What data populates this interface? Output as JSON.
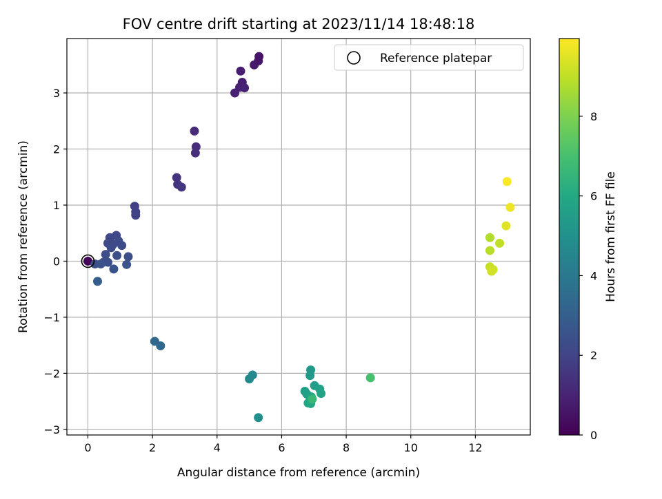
{
  "chart_data": {
    "type": "scatter",
    "title": "FOV centre drift starting at 2023/11/14 18:48:18",
    "xlabel": "Angular distance from reference (arcmin)",
    "ylabel": "Rotation from reference (arcmin)",
    "xlim": [
      -0.65,
      13.7
    ],
    "ylim": [
      -3.1,
      3.97
    ],
    "xticks": [
      0,
      2,
      4,
      6,
      8,
      10,
      12
    ],
    "yticks": [
      3,
      2,
      1,
      0,
      -1,
      -2,
      -3
    ],
    "xtick_labels": [
      "0",
      "2",
      "4",
      "6",
      "8",
      "10",
      "12"
    ],
    "ytick_labels": [
      "3",
      "2",
      "1",
      "0",
      "−1",
      "−2",
      "−3"
    ],
    "grid": true,
    "legend": {
      "position": "top-right",
      "entries": [
        {
          "label": "Reference platepar",
          "marker": "open-circle"
        }
      ]
    },
    "reference_point": {
      "x": 0,
      "y": 0
    },
    "colorbar": {
      "label": "Hours from first FF file",
      "colormap": "viridis",
      "range": [
        0,
        9.95
      ],
      "ticks": [
        0,
        2,
        4,
        6,
        8
      ],
      "tick_labels": [
        "0",
        "2",
        "4",
        "6",
        "8"
      ]
    },
    "points": [
      {
        "x": 0.0,
        "y": 0.0,
        "t": 0.05
      },
      {
        "x": 4.55,
        "y": 3.0,
        "t": 0.9
      },
      {
        "x": 4.7,
        "y": 3.1,
        "t": 0.9
      },
      {
        "x": 4.78,
        "y": 3.19,
        "t": 0.85
      },
      {
        "x": 4.85,
        "y": 3.09,
        "t": 0.95
      },
      {
        "x": 4.73,
        "y": 3.39,
        "t": 0.85
      },
      {
        "x": 5.15,
        "y": 3.5,
        "t": 0.7
      },
      {
        "x": 5.28,
        "y": 3.57,
        "t": 0.6
      },
      {
        "x": 5.3,
        "y": 3.65,
        "t": 0.55
      },
      {
        "x": 3.3,
        "y": 2.32,
        "t": 1.2
      },
      {
        "x": 3.35,
        "y": 2.04,
        "t": 1.25
      },
      {
        "x": 3.33,
        "y": 1.93,
        "t": 1.3
      },
      {
        "x": 2.75,
        "y": 1.49,
        "t": 1.45
      },
      {
        "x": 2.78,
        "y": 1.37,
        "t": 1.5
      },
      {
        "x": 2.9,
        "y": 1.32,
        "t": 1.55
      },
      {
        "x": 1.45,
        "y": 0.98,
        "t": 1.85
      },
      {
        "x": 1.48,
        "y": 0.88,
        "t": 1.9
      },
      {
        "x": 1.48,
        "y": 0.82,
        "t": 1.95
      },
      {
        "x": 0.68,
        "y": 0.42,
        "t": 2.1
      },
      {
        "x": 0.88,
        "y": 0.46,
        "t": 2.15
      },
      {
        "x": 0.62,
        "y": 0.32,
        "t": 2.2
      },
      {
        "x": 0.78,
        "y": 0.3,
        "t": 2.2
      },
      {
        "x": 0.95,
        "y": 0.36,
        "t": 2.25
      },
      {
        "x": 1.05,
        "y": 0.28,
        "t": 2.3
      },
      {
        "x": 0.72,
        "y": 0.24,
        "t": 2.3
      },
      {
        "x": 0.55,
        "y": 0.12,
        "t": 2.35
      },
      {
        "x": 0.9,
        "y": 0.1,
        "t": 2.4
      },
      {
        "x": 1.25,
        "y": 0.08,
        "t": 2.4
      },
      {
        "x": 0.48,
        "y": -0.02,
        "t": 2.45
      },
      {
        "x": 0.62,
        "y": -0.02,
        "t": 2.45
      },
      {
        "x": 0.22,
        "y": -0.05,
        "t": 2.4
      },
      {
        "x": 0.4,
        "y": -0.05,
        "t": 2.5
      },
      {
        "x": 1.2,
        "y": -0.06,
        "t": 2.55
      },
      {
        "x": 0.8,
        "y": -0.14,
        "t": 2.55
      },
      {
        "x": 0.3,
        "y": -0.36,
        "t": 2.9
      },
      {
        "x": 2.07,
        "y": -1.43,
        "t": 3.3
      },
      {
        "x": 2.25,
        "y": -1.51,
        "t": 3.35
      },
      {
        "x": 5.1,
        "y": -2.03,
        "t": 4.6
      },
      {
        "x": 5.0,
        "y": -2.1,
        "t": 4.65
      },
      {
        "x": 5.28,
        "y": -2.79,
        "t": 4.9
      },
      {
        "x": 6.9,
        "y": -1.94,
        "t": 5.3
      },
      {
        "x": 6.88,
        "y": -2.04,
        "t": 5.4
      },
      {
        "x": 7.02,
        "y": -2.22,
        "t": 5.5
      },
      {
        "x": 6.72,
        "y": -2.32,
        "t": 5.6
      },
      {
        "x": 6.78,
        "y": -2.37,
        "t": 5.65
      },
      {
        "x": 7.18,
        "y": -2.28,
        "t": 5.7
      },
      {
        "x": 7.22,
        "y": -2.36,
        "t": 5.75
      },
      {
        "x": 6.92,
        "y": -2.42,
        "t": 5.8
      },
      {
        "x": 6.88,
        "y": -2.48,
        "t": 5.85
      },
      {
        "x": 6.82,
        "y": -2.53,
        "t": 5.9
      },
      {
        "x": 6.9,
        "y": -2.54,
        "t": 5.95
      },
      {
        "x": 6.95,
        "y": -2.46,
        "t": 6.6
      },
      {
        "x": 8.75,
        "y": -2.08,
        "t": 7.0
      },
      {
        "x": 12.45,
        "y": 0.42,
        "t": 8.8
      },
      {
        "x": 12.45,
        "y": 0.19,
        "t": 8.9
      },
      {
        "x": 12.75,
        "y": 0.32,
        "t": 9.0
      },
      {
        "x": 12.45,
        "y": -0.1,
        "t": 9.1
      },
      {
        "x": 12.55,
        "y": -0.15,
        "t": 9.2
      },
      {
        "x": 12.5,
        "y": -0.18,
        "t": 9.25
      },
      {
        "x": 12.95,
        "y": 0.63,
        "t": 9.5
      },
      {
        "x": 13.08,
        "y": 0.96,
        "t": 9.7
      },
      {
        "x": 12.98,
        "y": 1.42,
        "t": 9.9
      }
    ]
  }
}
